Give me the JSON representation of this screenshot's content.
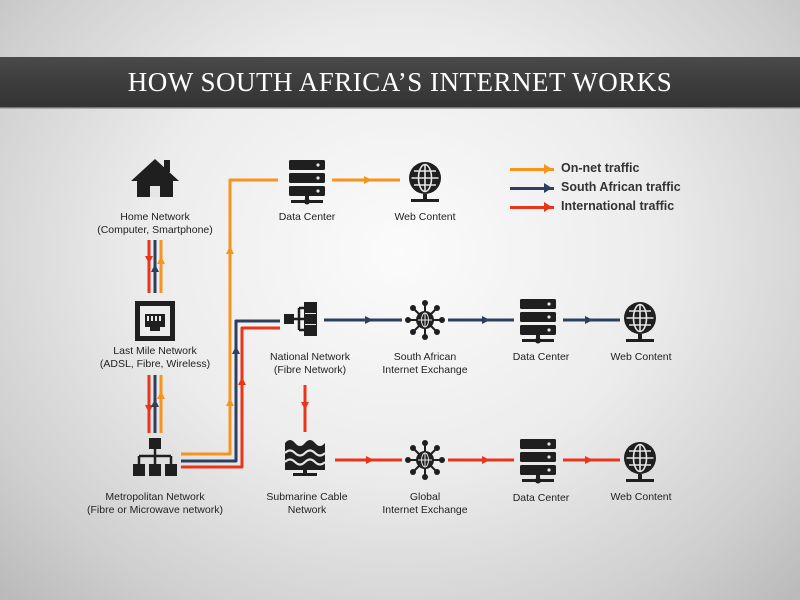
{
  "title": "HOW SOUTH AFRICA’S INTERNET WORKS",
  "colors": {
    "on_net": "#f7941d",
    "south_african": "#2b3f5f",
    "international": "#e8361b",
    "icon": "#1f1f1f",
    "banner": "#3f3f3f"
  },
  "legend": [
    {
      "label": "On-net traffic",
      "color": "#f7941d"
    },
    {
      "label": "South African traffic",
      "color": "#2b3f5f"
    },
    {
      "label": "International traffic",
      "color": "#e8361b"
    }
  ],
  "nodes": {
    "home_network": {
      "lines": [
        "Home Network",
        "(Computer, Smartphone)"
      ],
      "icon": "house-icon"
    },
    "last_mile": {
      "lines": [
        "Last Mile Network",
        "(ADSL, Fibre, Wireless)"
      ],
      "icon": "network-socket-icon"
    },
    "metro": {
      "lines": [
        "Metropolitan Network",
        "(Fibre or Microwave network)"
      ],
      "icon": "network-hierarchy-icon"
    },
    "dc_top": {
      "lines": [
        "Data Center"
      ],
      "icon": "server-icon"
    },
    "web_top": {
      "lines": [
        "Web Content"
      ],
      "icon": "globe-icon"
    },
    "national": {
      "lines": [
        "National Network",
        "(Fibre Network)"
      ],
      "icon": "network-switch-icon"
    },
    "sa_ix": {
      "lines": [
        "South African",
        "Internet Exchange"
      ],
      "icon": "exchange-hub-icon"
    },
    "dc_mid": {
      "lines": [
        "Data Center"
      ],
      "icon": "server-icon"
    },
    "web_mid": {
      "lines": [
        "Web Content"
      ],
      "icon": "globe-icon"
    },
    "submarine": {
      "lines": [
        "Submarine Cable",
        "Network"
      ],
      "icon": "water-waves-icon"
    },
    "global_ix": {
      "lines": [
        "Global",
        "Internet Exchange"
      ],
      "icon": "exchange-hub-icon"
    },
    "dc_bot": {
      "lines": [
        "Data Center"
      ],
      "icon": "server-icon"
    },
    "web_bot": {
      "lines": [
        "Web Content"
      ],
      "icon": "globe-icon"
    }
  }
}
